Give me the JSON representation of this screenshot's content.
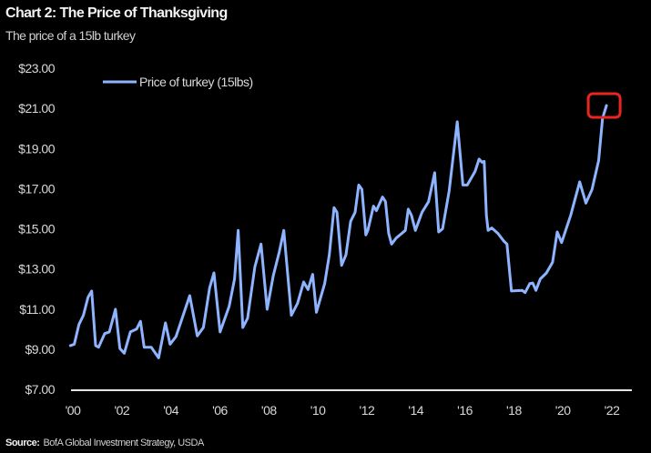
{
  "chart_data": {
    "type": "line",
    "title": "Chart 2: The Price of Thanksgiving",
    "subtitle": "The price of a 15lb turkey",
    "xlabel": "",
    "ylabel": "",
    "ylim": [
      7,
      23
    ],
    "xlim": [
      2000,
      2022
    ],
    "y_ticks": [
      "$23.00",
      "$21.00",
      "$19.00",
      "$17.00",
      "$15.00",
      "$13.00",
      "$11.00",
      "$9.00",
      "$7.00"
    ],
    "y_tick_values": [
      23,
      21,
      19,
      17,
      15,
      13,
      11,
      9,
      7
    ],
    "x_ticks": [
      "'00",
      "'02",
      "'04",
      "'06",
      "'08",
      "'10",
      "'12",
      "'14",
      "'16",
      "'18",
      "'20",
      "'22"
    ],
    "x_tick_values": [
      2000,
      2002,
      2004,
      2006,
      2008,
      2010,
      2012,
      2014,
      2016,
      2018,
      2020,
      2022
    ],
    "grid": false,
    "legend_position": "top-left",
    "series": [
      {
        "name": "Price of turkey (15lbs)",
        "color": "#8fb4ff",
        "x": [
          1999.9,
          2000.06,
          2000.25,
          2000.43,
          2000.62,
          2000.77,
          2000.93,
          2001.05,
          2001.3,
          2001.49,
          2001.74,
          2001.92,
          2002.1,
          2002.35,
          2002.6,
          2002.76,
          2002.91,
          2003.2,
          2003.5,
          2003.78,
          2003.97,
          2004.21,
          2004.77,
          2005.08,
          2005.33,
          2005.58,
          2005.76,
          2006.01,
          2006.38,
          2006.6,
          2006.75,
          2006.94,
          2007.13,
          2007.43,
          2007.68,
          2007.93,
          2008.18,
          2008.43,
          2008.61,
          2008.92,
          2009.17,
          2009.42,
          2009.6,
          2009.79,
          2009.94,
          2010.28,
          2010.47,
          2010.66,
          2010.78,
          2010.97,
          2011.15,
          2011.34,
          2011.52,
          2011.67,
          2011.8,
          2011.96,
          2012.04,
          2012.27,
          2012.39,
          2012.64,
          2012.76,
          2012.89,
          2013.01,
          2013.2,
          2013.57,
          2013.69,
          2013.82,
          2013.98,
          2014.25,
          2014.52,
          2014.77,
          2014.93,
          2015.09,
          2015.36,
          2015.69,
          2015.92,
          2016.1,
          2016.42,
          2016.58,
          2016.7,
          2016.79,
          2016.88,
          2016.95,
          2017.1,
          2017.35,
          2017.59,
          2017.72,
          2017.9,
          2018.34,
          2018.46,
          2018.65,
          2018.77,
          2018.9,
          2019.08,
          2019.33,
          2019.58,
          2019.77,
          2019.95,
          2020.32,
          2020.69,
          2020.94,
          2021.19,
          2021.46,
          2021.62,
          2021.78
        ],
        "values": [
          9.18,
          9.25,
          10.23,
          10.69,
          11.59,
          11.9,
          9.18,
          9.1,
          9.78,
          9.86,
          10.99,
          9.03,
          8.8,
          9.86,
          10.0,
          10.39,
          9.1,
          9.1,
          8.57,
          10.31,
          9.25,
          9.63,
          11.67,
          9.66,
          10.08,
          12.05,
          12.8,
          9.86,
          11.14,
          12.5,
          14.92,
          10.08,
          10.54,
          13.1,
          14.24,
          10.99,
          12.65,
          13.86,
          14.92,
          10.69,
          11.29,
          12.35,
          11.97,
          12.73,
          10.84,
          12.27,
          13.71,
          16.05,
          15.82,
          13.18,
          13.71,
          15.37,
          15.82,
          17.18,
          16.96,
          14.69,
          14.92,
          16.13,
          15.9,
          16.58,
          16.35,
          14.77,
          14.24,
          14.54,
          14.92,
          15.98,
          15.67,
          14.92,
          15.82,
          16.35,
          17.79,
          14.84,
          15.0,
          16.88,
          20.33,
          17.18,
          17.18,
          17.86,
          18.47,
          18.32,
          18.36,
          15.67,
          14.92,
          15.04,
          14.77,
          14.39,
          14.24,
          11.9,
          11.93,
          11.82,
          12.27,
          12.3,
          11.93,
          12.5,
          12.8,
          13.33,
          14.84,
          14.31,
          15.67,
          17.34,
          16.28,
          16.96,
          18.4,
          20.51,
          21.14
        ]
      }
    ],
    "annotations": [
      {
        "type": "highlight-box",
        "target": "latest value",
        "x": 2021.78,
        "value": 21.14,
        "color": "#e8261f"
      }
    ],
    "source_label": "Source:",
    "source_text": "BofA Global Investment Strategy, USDA"
  }
}
